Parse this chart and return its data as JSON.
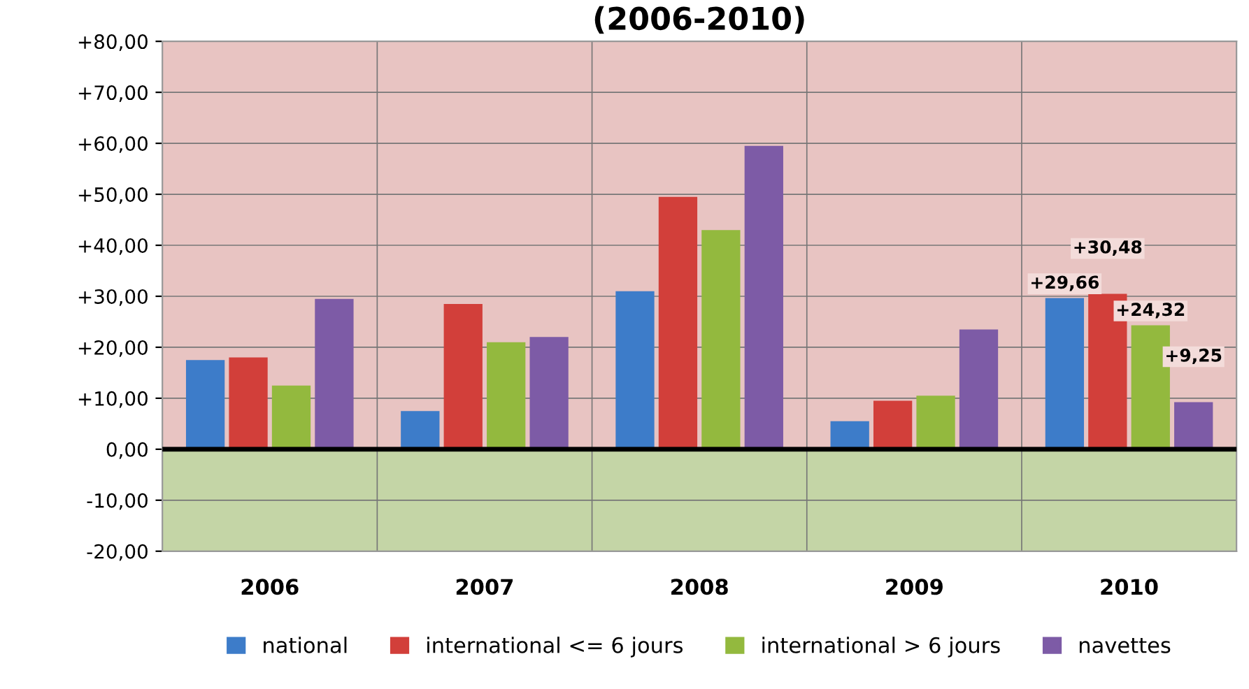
{
  "chart_data": {
    "type": "bar",
    "title": "(2006-2010)",
    "categories": [
      "2006",
      "2007",
      "2008",
      "2009",
      "2010"
    ],
    "series": [
      {
        "name": "national",
        "color": "#3d7cc9",
        "values": [
          17.5,
          7.5,
          31,
          5.5,
          29.66
        ],
        "value_labels": [
          null,
          null,
          null,
          null,
          "+29,66"
        ]
      },
      {
        "name": "international <= 6 jours",
        "color": "#d23f3a",
        "values": [
          18,
          28.5,
          49.5,
          9.5,
          30.48
        ],
        "value_labels": [
          null,
          null,
          null,
          null,
          "+30,48"
        ]
      },
      {
        "name": "international > 6 jours",
        "color": "#93b93e",
        "values": [
          12.5,
          21,
          43,
          10.5,
          24.32
        ],
        "value_labels": [
          null,
          null,
          null,
          null,
          "+24,32"
        ]
      },
      {
        "name": "navettes",
        "color": "#7d5ba6",
        "values": [
          29.5,
          22,
          59.5,
          23.5,
          9.25
        ],
        "value_labels": [
          null,
          null,
          null,
          null,
          "+9,25"
        ]
      }
    ],
    "ylim": [
      -20,
      80
    ],
    "yticks": [
      {
        "value": -20,
        "label": "-20,00"
      },
      {
        "value": -10,
        "label": "-10,00"
      },
      {
        "value": 0,
        "label": "0,00"
      },
      {
        "value": 10,
        "label": "+10,00"
      },
      {
        "value": 20,
        "label": "+20,00"
      },
      {
        "value": 30,
        "label": "+30,00"
      },
      {
        "value": 40,
        "label": "+40,00"
      },
      {
        "value": 50,
        "label": "+50,00"
      },
      {
        "value": 60,
        "label": "+60,00"
      },
      {
        "value": 70,
        "label": "+70,00"
      },
      {
        "value": 80,
        "label": "+80,00"
      }
    ],
    "bands": [
      {
        "axis": "y",
        "from": -20,
        "to": 0,
        "color": "#c4d5a6"
      },
      {
        "axis": "y",
        "from": 0,
        "to": 80,
        "color": "#e8c4c2"
      }
    ],
    "grid": true,
    "legend": "bottom"
  }
}
